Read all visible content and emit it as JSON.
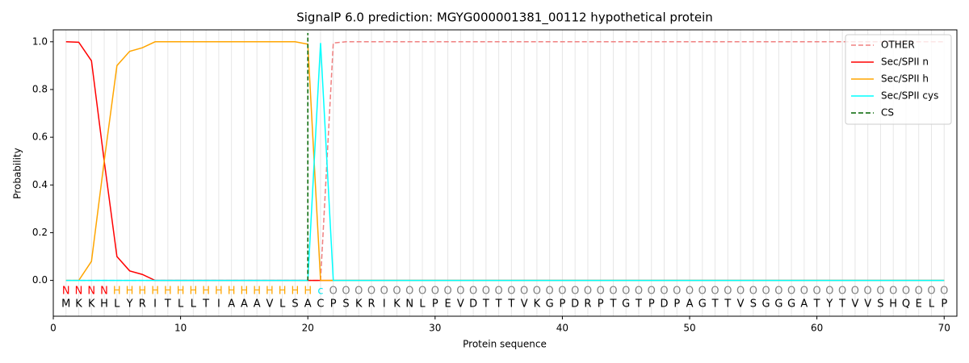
{
  "chart_data": {
    "type": "line",
    "title": "SignalP 6.0 prediction: MGYG000001381_00112 hypothetical protein",
    "xlabel": "Protein sequence",
    "ylabel": "Probability",
    "x": [
      1,
      2,
      3,
      4,
      5,
      6,
      7,
      8,
      9,
      10,
      11,
      12,
      13,
      14,
      15,
      16,
      17,
      18,
      19,
      20,
      21,
      22,
      23,
      24,
      25,
      26,
      27,
      28,
      29,
      30,
      31,
      32,
      33,
      34,
      35,
      36,
      37,
      38,
      39,
      40,
      41,
      42,
      43,
      44,
      45,
      46,
      47,
      48,
      49,
      50,
      51,
      52,
      53,
      54,
      55,
      56,
      57,
      58,
      59,
      60,
      61,
      62,
      63,
      64,
      65,
      66,
      67,
      68,
      69,
      70
    ],
    "sequence": [
      "M",
      "K",
      "K",
      "H",
      "L",
      "Y",
      "R",
      "I",
      "T",
      "L",
      "L",
      "T",
      "I",
      "A",
      "A",
      "A",
      "V",
      "L",
      "S",
      "A",
      "C",
      "P",
      "S",
      "K",
      "R",
      "I",
      "K",
      "N",
      "L",
      "P",
      "E",
      "V",
      "D",
      "T",
      "T",
      "T",
      "V",
      "K",
      "G",
      "P",
      "D",
      "R",
      "P",
      "T",
      "G",
      "T",
      "P",
      "D",
      "P",
      "A",
      "G",
      "T",
      "T",
      "V",
      "S",
      "G",
      "G",
      "G",
      "A",
      "T",
      "Y",
      "T",
      "V",
      "V",
      "S",
      "H",
      "Q",
      "E",
      "L",
      "P"
    ],
    "labels": [
      "N",
      "N",
      "N",
      "N",
      "H",
      "H",
      "H",
      "H",
      "H",
      "H",
      "H",
      "H",
      "H",
      "H",
      "H",
      "H",
      "H",
      "H",
      "H",
      "H",
      "c",
      "O",
      "O",
      "O",
      "O",
      "O",
      "O",
      "O",
      "O",
      "O",
      "O",
      "O",
      "O",
      "O",
      "O",
      "O",
      "O",
      "O",
      "O",
      "O",
      "O",
      "O",
      "O",
      "O",
      "O",
      "O",
      "O",
      "O",
      "O",
      "O",
      "O",
      "O",
      "O",
      "O",
      "O",
      "O",
      "O",
      "O",
      "O",
      "O",
      "O",
      "O",
      "O",
      "O",
      "O",
      "O",
      "O",
      "O",
      "O",
      "O"
    ],
    "label_colors": {
      "N": "#ff0000",
      "H": "#ffa500",
      "c": "#00e5ee",
      "O": "#808080"
    },
    "series": [
      {
        "name": "OTHER",
        "color": "#f08080",
        "dashed": true,
        "values": [
          0,
          0,
          0,
          0,
          0,
          0,
          0,
          0,
          0,
          0,
          0,
          0,
          0,
          0,
          0,
          0,
          0,
          0,
          0,
          0,
          0,
          0.995,
          1,
          1,
          1,
          1,
          1,
          1,
          1,
          1,
          1,
          1,
          1,
          1,
          1,
          1,
          1,
          1,
          1,
          1,
          1,
          1,
          1,
          1,
          1,
          1,
          1,
          1,
          1,
          1,
          1,
          1,
          1,
          1,
          1,
          1,
          1,
          1,
          1,
          1,
          1,
          1,
          1,
          1,
          1,
          1,
          1,
          1,
          1,
          1
        ]
      },
      {
        "name": "Sec/SPII n",
        "color": "#ff0000",
        "dashed": false,
        "values": [
          1,
          0.998,
          0.92,
          0.5,
          0.1,
          0.04,
          0.025,
          0,
          0,
          0,
          0,
          0,
          0,
          0,
          0,
          0,
          0,
          0,
          0,
          0,
          0,
          0,
          0,
          0,
          0,
          0,
          0,
          0,
          0,
          0,
          0,
          0,
          0,
          0,
          0,
          0,
          0,
          0,
          0,
          0,
          0,
          0,
          0,
          0,
          0,
          0,
          0,
          0,
          0,
          0,
          0,
          0,
          0,
          0,
          0,
          0,
          0,
          0,
          0,
          0,
          0,
          0,
          0,
          0,
          0,
          0,
          0,
          0,
          0,
          0
        ]
      },
      {
        "name": "Sec/SPII h",
        "color": "#ffa500",
        "dashed": false,
        "values": [
          0,
          0,
          0.08,
          0.5,
          0.9,
          0.96,
          0.975,
          1,
          1,
          1,
          1,
          1,
          1,
          1,
          1,
          1,
          1,
          1,
          1,
          0.99,
          0,
          0,
          0,
          0,
          0,
          0,
          0,
          0,
          0,
          0,
          0,
          0,
          0,
          0,
          0,
          0,
          0,
          0,
          0,
          0,
          0,
          0,
          0,
          0,
          0,
          0,
          0,
          0,
          0,
          0,
          0,
          0,
          0,
          0,
          0,
          0,
          0,
          0,
          0,
          0,
          0,
          0,
          0,
          0,
          0,
          0,
          0,
          0,
          0,
          0
        ]
      },
      {
        "name": "Sec/SPII cys",
        "color": "#00ffff",
        "dashed": false,
        "values": [
          0,
          0,
          0,
          0,
          0,
          0,
          0,
          0,
          0,
          0,
          0,
          0,
          0,
          0,
          0,
          0,
          0,
          0,
          0,
          0,
          0.995,
          0,
          0,
          0,
          0,
          0,
          0,
          0,
          0,
          0,
          0,
          0,
          0,
          0,
          0,
          0,
          0,
          0,
          0,
          0,
          0,
          0,
          0,
          0,
          0,
          0,
          0,
          0,
          0,
          0,
          0,
          0,
          0,
          0,
          0,
          0,
          0,
          0,
          0,
          0,
          0,
          0,
          0,
          0,
          0,
          0,
          0,
          0,
          0,
          0
        ]
      }
    ],
    "cs": {
      "name": "CS",
      "color": "#006400",
      "x": 20
    },
    "xlim": [
      0,
      71
    ],
    "ylim": [
      -0.15,
      1.05
    ],
    "xticks": [
      0,
      10,
      20,
      30,
      40,
      50,
      60,
      70
    ],
    "yticks": [
      {
        "value": 0,
        "label": "0.0"
      },
      {
        "value": 0.2,
        "label": "0.2"
      },
      {
        "value": 0.4,
        "label": "0.4"
      },
      {
        "value": 0.6,
        "label": "0.6"
      },
      {
        "value": 0.8,
        "label": "0.8"
      },
      {
        "value": 1,
        "label": "1.0"
      }
    ],
    "grid": true,
    "legend": "upper right"
  }
}
